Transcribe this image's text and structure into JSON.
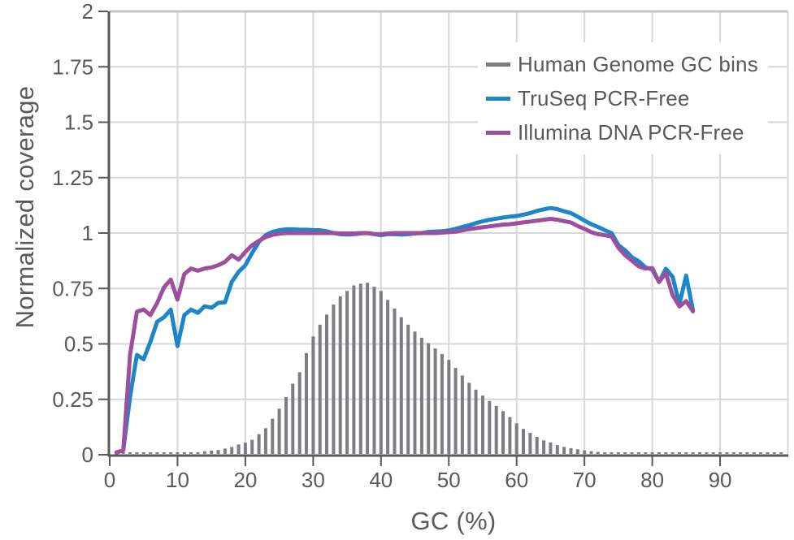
{
  "chart_data": {
    "type": "line",
    "title": "",
    "xlabel": "GC (%)",
    "ylabel": "Normalized coverage",
    "xlim": [
      0,
      100
    ],
    "ylim": [
      0,
      2
    ],
    "xticks": [
      0,
      10,
      20,
      30,
      40,
      50,
      60,
      70,
      80,
      90
    ],
    "xgridlines": [
      10,
      20,
      30,
      40,
      50,
      60,
      70,
      80,
      90,
      100
    ],
    "yticks": [
      0,
      0.25,
      0.5,
      0.75,
      1,
      1.25,
      1.5,
      1.75,
      2
    ],
    "ytick_labels": [
      "0",
      "0.25",
      "0.5",
      "0.75",
      "1",
      "1.25",
      "1.5",
      "1.75",
      "2"
    ],
    "grid": true,
    "legend_position": "top-right",
    "background_color": "#ffffff",
    "axis_color": "#58595b",
    "grid_color": "#d6d7d9",
    "top_border_color": "#c4c5c8",
    "text_color": "#595a5c",
    "series": [
      {
        "name": "Human Genome GC bins",
        "style": "bar",
        "color": "#7b7d80",
        "x_start": 1,
        "x_step": 1,
        "values": [
          0.004,
          0.004,
          0.004,
          0.004,
          0.004,
          0.004,
          0.004,
          0.004,
          0.004,
          0.004,
          0.005,
          0.006,
          0.008,
          0.012,
          0.015,
          0.018,
          0.024,
          0.031,
          0.043,
          0.051,
          0.064,
          0.089,
          0.116,
          0.159,
          0.204,
          0.256,
          0.317,
          0.369,
          0.455,
          0.53,
          0.583,
          0.629,
          0.674,
          0.711,
          0.735,
          0.76,
          0.768,
          0.772,
          0.754,
          0.735,
          0.695,
          0.656,
          0.617,
          0.583,
          0.552,
          0.524,
          0.5,
          0.476,
          0.451,
          0.424,
          0.388,
          0.354,
          0.321,
          0.29,
          0.263,
          0.239,
          0.217,
          0.193,
          0.166,
          0.138,
          0.113,
          0.095,
          0.077,
          0.061,
          0.052,
          0.04,
          0.032,
          0.026,
          0.021,
          0.016,
          0.012,
          0.009,
          0.007,
          0.006,
          0.005,
          0.004,
          0.004,
          0.004,
          0.004,
          0.004,
          0.004,
          0.004,
          0.004,
          0.004,
          0.004,
          0.004,
          0.004,
          0.004,
          0.004,
          0.004,
          0.004,
          0.004,
          0.004,
          0.004,
          0.004,
          0.004,
          0.004,
          0.004,
          0.004
        ]
      },
      {
        "name": "TruSeq PCR-Free",
        "style": "line",
        "color": "#1e86c8",
        "x_start": 1,
        "x_step": 1,
        "values": [
          0.01,
          0.02,
          0.26,
          0.45,
          0.43,
          0.51,
          0.6,
          0.62,
          0.655,
          0.49,
          0.63,
          0.655,
          0.64,
          0.67,
          0.663,
          0.685,
          0.688,
          0.78,
          0.825,
          0.855,
          0.91,
          0.96,
          0.99,
          1.005,
          1.013,
          1.017,
          1.017,
          1.015,
          1.015,
          1.013,
          1.013,
          1.008,
          1.0,
          0.995,
          0.993,
          0.995,
          0.998,
          1.0,
          0.995,
          0.99,
          0.995,
          0.995,
          0.993,
          0.995,
          0.998,
          1.0,
          1.005,
          1.007,
          1.008,
          1.012,
          1.019,
          1.027,
          1.035,
          1.045,
          1.053,
          1.06,
          1.065,
          1.07,
          1.074,
          1.077,
          1.083,
          1.09,
          1.1,
          1.107,
          1.113,
          1.108,
          1.098,
          1.09,
          1.074,
          1.056,
          1.04,
          1.028,
          1.013,
          1.0,
          0.946,
          0.922,
          0.891,
          0.873,
          0.845,
          0.835,
          0.78,
          0.839,
          0.803,
          0.68,
          0.808,
          0.651
        ]
      },
      {
        "name": "Illumina DNA PCR-Free",
        "style": "line",
        "color": "#9c4f9c",
        "x_start": 1,
        "x_step": 1,
        "values": [
          0.01,
          0.02,
          0.45,
          0.645,
          0.655,
          0.63,
          0.685,
          0.755,
          0.79,
          0.7,
          0.815,
          0.84,
          0.83,
          0.84,
          0.845,
          0.855,
          0.87,
          0.9,
          0.88,
          0.915,
          0.945,
          0.965,
          0.982,
          0.992,
          0.997,
          1.0,
          1.0,
          1.0,
          1.0,
          1.0,
          1.0,
          1.0,
          1.0,
          0.998,
          0.998,
          0.998,
          1.0,
          1.0,
          0.996,
          0.995,
          0.998,
          1.0,
          1.0,
          1.0,
          1.0,
          1.0,
          1.0,
          1.0,
          1.002,
          1.004,
          1.006,
          1.012,
          1.018,
          1.022,
          1.026,
          1.03,
          1.034,
          1.038,
          1.04,
          1.044,
          1.048,
          1.052,
          1.056,
          1.06,
          1.064,
          1.06,
          1.054,
          1.048,
          1.032,
          1.019,
          1.004,
          0.995,
          0.99,
          0.985,
          0.934,
          0.9,
          0.875,
          0.85,
          0.84,
          0.842,
          0.779,
          0.82,
          0.72,
          0.669,
          0.693,
          0.647
        ]
      }
    ]
  }
}
